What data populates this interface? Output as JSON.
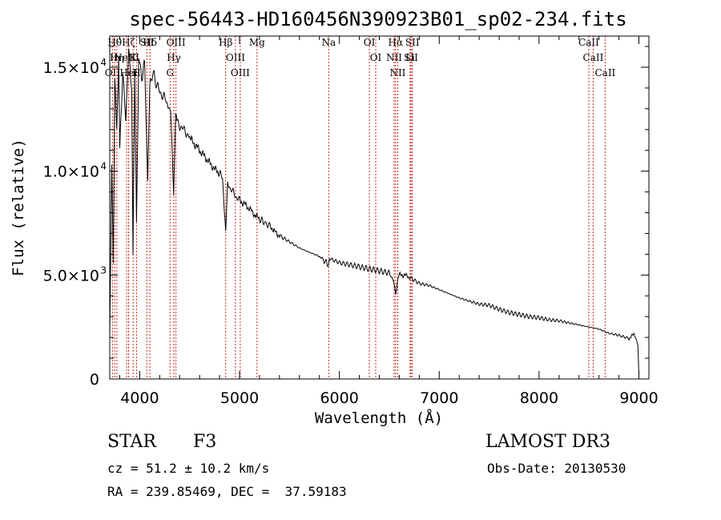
{
  "chart_data": {
    "type": "line",
    "title": "spec-56443-HD160456N390923B01_sp02-234.fits",
    "xlabel": "Wavelength (Å)",
    "ylabel": "Flux (relative)",
    "xlim": [
      3700,
      9100
    ],
    "ylim": [
      0,
      16500
    ],
    "x_ticks": [
      4000,
      5000,
      6000,
      7000,
      8000,
      9000
    ],
    "x_tick_labels": [
      "4000",
      "5000",
      "6000",
      "7000",
      "8000",
      "9000"
    ],
    "y_ticks": [
      0,
      5000,
      10000,
      15000
    ],
    "y_tick_labels": [
      {
        "base": "0",
        "sup": ""
      },
      {
        "base": "5.0×10",
        "sup": "3"
      },
      {
        "base": "1.0×10",
        "sup": "4"
      },
      {
        "base": "1.5×10",
        "sup": "4"
      }
    ],
    "series": [
      {
        "name": "spectrum",
        "x": [
          3700,
          3720,
          3735,
          3750,
          3770,
          3790,
          3800,
          3830,
          3860,
          3890,
          3920,
          3933,
          3950,
          3968,
          3990,
          4020,
          4050,
          4080,
          4101,
          4130,
          4160,
          4200,
          4240,
          4280,
          4310,
          4340,
          4360,
          4380,
          4420,
          4460,
          4500,
          4550,
          4600,
          4650,
          4700,
          4750,
          4800,
          4830,
          4861,
          4880,
          4920,
          4960,
          5000,
          5050,
          5100,
          5150,
          5200,
          5260,
          5300,
          5350,
          5400,
          5500,
          5600,
          5700,
          5800,
          5890,
          5900,
          6000,
          6100,
          6200,
          6300,
          6400,
          6500,
          6540,
          6563,
          6580,
          6600,
          6650,
          6700,
          6800,
          6900,
          7000,
          7100,
          7200,
          7300,
          7400,
          7500,
          7600,
          7700,
          7800,
          7900,
          8000,
          8100,
          8200,
          8300,
          8400,
          8500,
          8600,
          8700,
          8800,
          8900,
          8950,
          8990,
          9000
        ],
        "values": [
          2000,
          10500,
          5500,
          14500,
          12000,
          15500,
          11000,
          14800,
          12500,
          15800,
          14000,
          6000,
          15000,
          7500,
          15500,
          14500,
          15200,
          9500,
          14000,
          14800,
          14300,
          13800,
          13600,
          13200,
          12900,
          9000,
          12800,
          12300,
          12100,
          11900,
          11600,
          11300,
          11000,
          10700,
          10400,
          10100,
          9900,
          9700,
          7000,
          9400,
          9100,
          8800,
          8600,
          8400,
          8200,
          7900,
          7700,
          7500,
          7400,
          7100,
          6900,
          6600,
          6300,
          6100,
          5900,
          5500,
          5800,
          5600,
          5500,
          5400,
          5300,
          5200,
          5100,
          4800,
          4000,
          4700,
          5000,
          5000,
          4900,
          4600,
          4500,
          4300,
          4100,
          3900,
          3750,
          3600,
          3550,
          3350,
          3200,
          3100,
          3000,
          2950,
          2850,
          2800,
          2700,
          2600,
          2500,
          2400,
          2200,
          2100,
          1950,
          2150,
          1700,
          200
        ]
      }
    ],
    "lines": [
      {
        "label": "Hθ",
        "wl": 3750
      },
      {
        "label": "Hη",
        "wl": 3771
      },
      {
        "label": "Hζ",
        "wl": 3889
      },
      {
        "label": "K",
        "wl": 3934
      },
      {
        "label": "H",
        "wl": 3968
      },
      {
        "label": "Hδ",
        "wl": 4102
      },
      {
        "label": "OIII",
        "wl": 4363
      },
      {
        "label": "Hγ",
        "wl": 4341
      },
      {
        "label": "G",
        "wl": 4304
      },
      {
        "label": "OII",
        "wl": 3727
      },
      {
        "label": "NeIII",
        "wl": 3869
      },
      {
        "label": "HeI",
        "wl": 3889
      },
      {
        "label": "SII",
        "wl": 4072
      },
      {
        "label": "Hβ",
        "wl": 4861
      },
      {
        "label": "OIII",
        "wl": 4959
      },
      {
        "label": "OIII",
        "wl": 5007
      },
      {
        "label": "Mg",
        "wl": 5175
      },
      {
        "label": "Na",
        "wl": 5893
      },
      {
        "label": "OI",
        "wl": 6300
      },
      {
        "label": "OI",
        "wl": 6364
      },
      {
        "label": "Hα",
        "wl": 6563
      },
      {
        "label": "NII",
        "wl": 6548
      },
      {
        "label": "NII",
        "wl": 6584
      },
      {
        "label": "SII",
        "wl": 6717
      },
      {
        "label": "SII",
        "wl": 6731
      },
      {
        "label": "Li",
        "wl": 6708
      },
      {
        "label": "CaII",
        "wl": 8498
      },
      {
        "label": "CaII",
        "wl": 8542
      },
      {
        "label": "CaII",
        "wl": 8662
      }
    ]
  },
  "info": {
    "class": "STAR",
    "subclass": "F3",
    "survey": "LAMOST DR3",
    "cz": "cz = 51.2 ± 10.2 km/s",
    "obs_date": "Obs-Date: 20130530",
    "coords": "RA = 239.85469, DEC =  37.59183"
  },
  "colors": {
    "lines": "#cc2a1e",
    "spectrum": "#000000"
  }
}
